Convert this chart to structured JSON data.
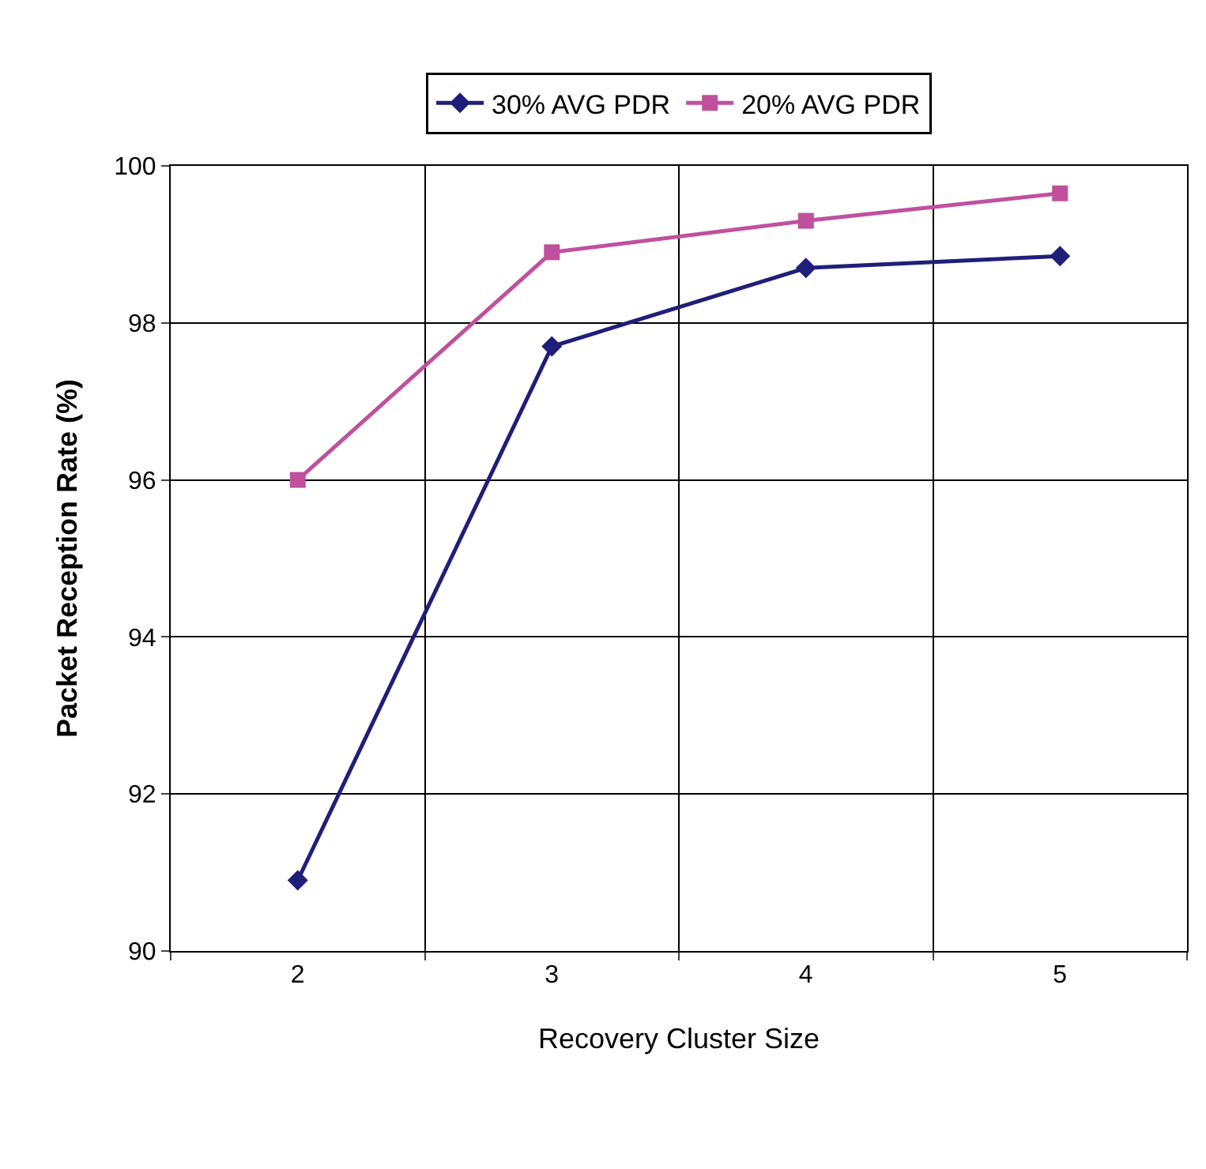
{
  "chart_data": {
    "type": "line",
    "xlabel": "Recovery Cluster Size",
    "ylabel": "Packet Reception Rate (%)",
    "categories": [
      "2",
      "3",
      "4",
      "5"
    ],
    "series": [
      {
        "name": "30% AVG PDR",
        "color": "#1f1f7a",
        "marker": "diamond",
        "values": [
          90.9,
          97.7,
          98.7,
          98.85
        ]
      },
      {
        "name": "20% AVG PDR",
        "color": "#c0509e",
        "marker": "square",
        "values": [
          96.0,
          98.9,
          99.3,
          99.65
        ]
      }
    ],
    "ylim": [
      90,
      100
    ],
    "yticks": [
      90,
      92,
      94,
      96,
      98,
      100
    ],
    "grid": true,
    "legend": "top",
    "line_style": "solid"
  }
}
